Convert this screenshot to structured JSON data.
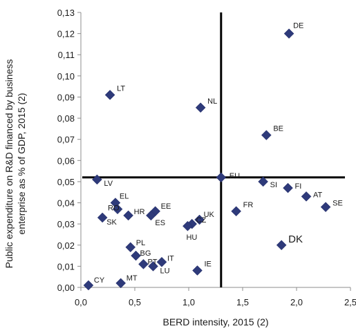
{
  "chart_data": {
    "type": "scatter",
    "title": "",
    "xlabel": "BERD intensity, 2015 (2)",
    "ylabel_lines": [
      "Public expenditure on R&D financed by business",
      "enterprise as % of GDP, 2015 (2)"
    ],
    "xlim": [
      0,
      2.5
    ],
    "ylim": [
      0,
      0.13
    ],
    "x_ticks": [
      "0,0",
      "0,5",
      "1,0",
      "1,5",
      "2,0",
      "2,5"
    ],
    "y_ticks": [
      "0,00",
      "0,01",
      "0,02",
      "0,03",
      "0,04",
      "0,05",
      "0,06",
      "0,07",
      "0,08",
      "0,09",
      "0,10",
      "0,11",
      "0,12",
      "0,13"
    ],
    "reference_lines": {
      "x": 1.3,
      "y": 0.052
    },
    "marker_color": "#2E3A7A",
    "points": [
      {
        "label": "DE",
        "x": 1.93,
        "y": 0.12
      },
      {
        "label": "LT",
        "x": 0.27,
        "y": 0.091
      },
      {
        "label": "NL",
        "x": 1.11,
        "y": 0.085
      },
      {
        "label": "BE",
        "x": 1.72,
        "y": 0.072
      },
      {
        "label": "LV",
        "x": 0.15,
        "y": 0.051
      },
      {
        "label": "EU",
        "x": 1.3,
        "y": 0.052
      },
      {
        "label": "SI",
        "x": 1.69,
        "y": 0.05
      },
      {
        "label": "FI",
        "x": 1.92,
        "y": 0.047
      },
      {
        "label": "AT",
        "x": 2.09,
        "y": 0.043
      },
      {
        "label": "SE",
        "x": 2.27,
        "y": 0.038
      },
      {
        "label": "EL",
        "x": 0.32,
        "y": 0.04
      },
      {
        "label": "EE",
        "x": 0.69,
        "y": 0.036
      },
      {
        "label": "HR",
        "x": 0.44,
        "y": 0.034
      },
      {
        "label": "RO",
        "x": 0.34,
        "y": 0.037
      },
      {
        "label": "SK",
        "x": 0.2,
        "y": 0.033
      },
      {
        "label": "ES",
        "x": 0.65,
        "y": 0.034
      },
      {
        "label": "FR",
        "x": 1.44,
        "y": 0.036
      },
      {
        "label": "UK",
        "x": 1.1,
        "y": 0.032
      },
      {
        "label": "CZ",
        "x": 1.03,
        "y": 0.03
      },
      {
        "label": "HU",
        "x": 0.99,
        "y": 0.029
      },
      {
        "label": "DK",
        "x": 1.86,
        "y": 0.02
      },
      {
        "label": "PL",
        "x": 0.46,
        "y": 0.019
      },
      {
        "label": "BG",
        "x": 0.51,
        "y": 0.015
      },
      {
        "label": "PT",
        "x": 0.58,
        "y": 0.011
      },
      {
        "label": "IT",
        "x": 0.75,
        "y": 0.012
      },
      {
        "label": "LU",
        "x": 0.67,
        "y": 0.01
      },
      {
        "label": "IE",
        "x": 1.08,
        "y": 0.008
      },
      {
        "label": "CY",
        "x": 0.07,
        "y": 0.001
      },
      {
        "label": "MT",
        "x": 0.37,
        "y": 0.002
      }
    ]
  }
}
